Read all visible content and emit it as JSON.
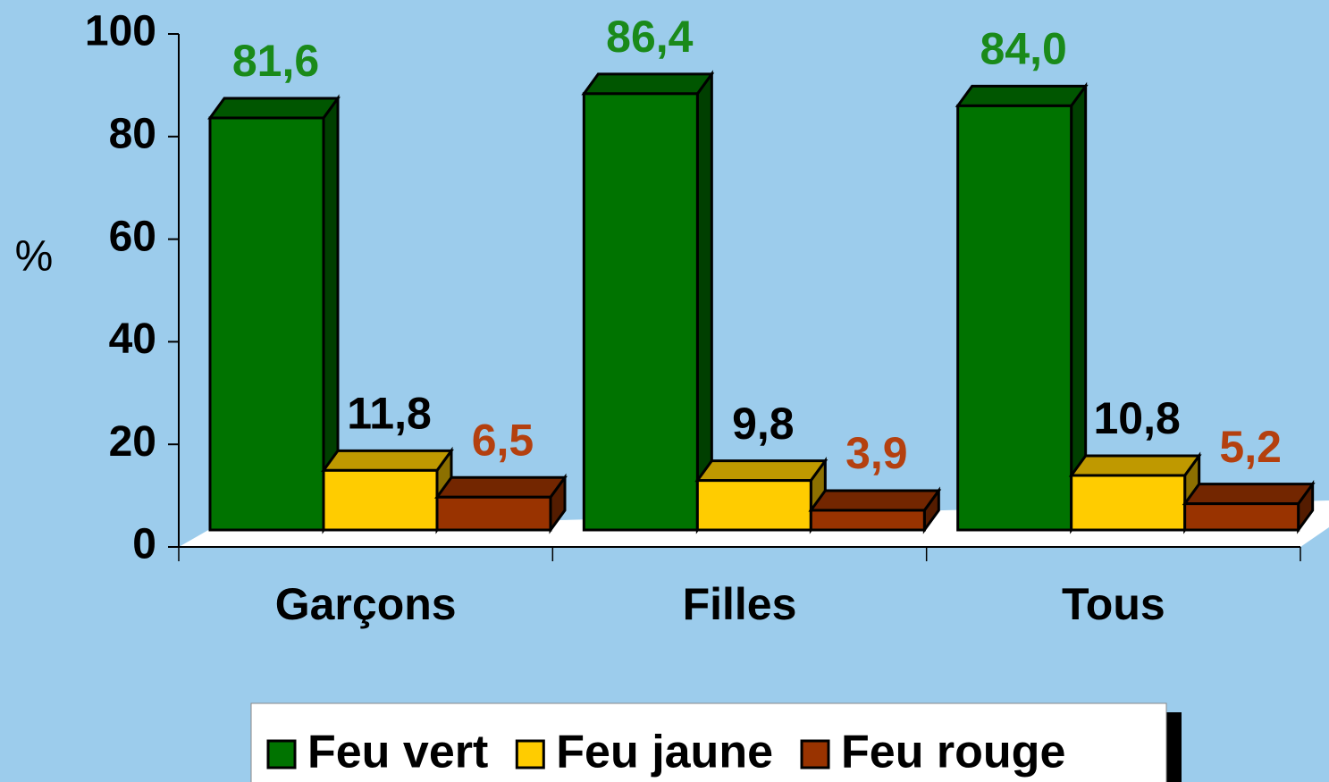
{
  "chart_data": {
    "type": "bar3d",
    "y_label": "%",
    "categories": [
      "Garçons",
      "Filles",
      "Tous"
    ],
    "series": [
      {
        "name": "Feu vert",
        "color": "#007300",
        "label_color": "#1a8a1a",
        "values": [
          81.6,
          86.4,
          84.0
        ],
        "value_labels": [
          "81,6",
          "86,4",
          "84,0"
        ]
      },
      {
        "name": "Feu jaune",
        "color": "#ffcc00",
        "label_color": "#000000",
        "values": [
          11.8,
          9.8,
          10.8
        ],
        "value_labels": [
          "11,8",
          "9,8",
          "10,8"
        ]
      },
      {
        "name": "Feu rouge",
        "color": "#993300",
        "label_color": "#b4400f",
        "values": [
          6.5,
          3.9,
          5.2
        ],
        "value_labels": [
          "6,5",
          "3,9",
          "5,2"
        ]
      }
    ],
    "ylim": [
      0,
      100
    ],
    "yticks": [
      0,
      20,
      40,
      60,
      80,
      100
    ]
  }
}
